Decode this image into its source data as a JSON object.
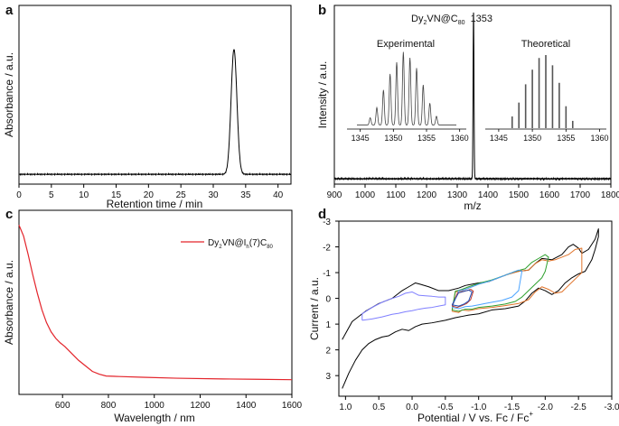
{
  "chart_data": [
    {
      "panel": "a",
      "type": "line",
      "xlabel": "Retention time / min",
      "ylabel": "Absorbance / a.u.",
      "xlim": [
        0,
        42
      ],
      "ylim": [
        0,
        1
      ],
      "xticks": [
        0,
        5,
        10,
        15,
        20,
        25,
        30,
        35,
        40
      ],
      "baseline": 0.055,
      "peaks": [
        {
          "x": 33.2,
          "height": 0.7,
          "width": 0.45
        }
      ],
      "noise": 0.004
    },
    {
      "panel": "b",
      "type": "line",
      "xlabel": "m/z",
      "ylabel": "Intensity / a.u.",
      "xlim": [
        900,
        1800
      ],
      "ylim": [
        0,
        1
      ],
      "xticks": [
        900,
        1000,
        1100,
        1200,
        1300,
        1400,
        1500,
        1600,
        1700,
        1800
      ],
      "baseline": 0.03,
      "peaks": [
        {
          "x": 1353,
          "height": 0.93,
          "width": 1.5
        }
      ],
      "peak_label": {
        "species_main": "Dy",
        "species_sub": "2",
        "species_mid": "VN@C",
        "species_sub2": "80",
        "value": "1353"
      },
      "insets": [
        {
          "title": "Experimental",
          "xlim": [
            1343,
            1361
          ],
          "xticks": [
            1345,
            1350,
            1355,
            1360
          ],
          "style": "broad",
          "masses": [
            1346.5,
            1347.5,
            1348.5,
            1349.5,
            1350.5,
            1351.5,
            1352.5,
            1353.5,
            1354.5,
            1355.5,
            1356.5
          ],
          "intensities": [
            0.1,
            0.24,
            0.48,
            0.7,
            0.86,
            1.0,
            0.92,
            0.78,
            0.55,
            0.3,
            0.12
          ]
        },
        {
          "title": "Theoretical",
          "xlim": [
            1343,
            1361
          ],
          "xticks": [
            1345,
            1350,
            1355,
            1360
          ],
          "style": "sticks",
          "masses": [
            1347,
            1348,
            1349,
            1350,
            1351,
            1352,
            1353,
            1354,
            1355,
            1356
          ],
          "intensities": [
            0.16,
            0.35,
            0.6,
            0.8,
            0.96,
            1.0,
            0.86,
            0.62,
            0.3,
            0.1
          ]
        }
      ]
    },
    {
      "panel": "c",
      "type": "line",
      "xlabel": "Wavelength / nm",
      "ylabel": "Absorbance / a.u.",
      "xlim": [
        410,
        1600
      ],
      "ylim": [
        0,
        1
      ],
      "xticks": [
        600,
        800,
        1000,
        1200,
        1400,
        1600
      ],
      "series": [
        {
          "name_main": "Dy",
          "name_sub": "2",
          "name_mid": "VN@I",
          "name_sub2": "h",
          "name_tail": "(7)C",
          "name_sub3": "80",
          "color": "#e3242b",
          "x": [
            410,
            430,
            450,
            470,
            490,
            510,
            530,
            550,
            570,
            590,
            610,
            630,
            650,
            670,
            700,
            730,
            760,
            790,
            850,
            950,
            1100,
            1300,
            1450,
            1600
          ],
          "y": [
            0.92,
            0.86,
            0.76,
            0.65,
            0.55,
            0.46,
            0.39,
            0.34,
            0.305,
            0.28,
            0.26,
            0.235,
            0.21,
            0.185,
            0.155,
            0.125,
            0.11,
            0.1,
            0.097,
            0.093,
            0.088,
            0.084,
            0.082,
            0.08
          ]
        }
      ]
    },
    {
      "panel": "d",
      "type": "line",
      "xlabel_main": "Potential / V vs. Fc / Fc",
      "xlabel_sup": "+",
      "ylabel": "Current / a.u.",
      "xlim": [
        1.1,
        -3.0
      ],
      "ylim": [
        3.8,
        -3.0
      ],
      "xticks": [
        1.0,
        0.5,
        0.0,
        -0.5,
        -1.0,
        -1.5,
        -2.0,
        -2.5,
        -3.0
      ],
      "xtick_labels": [
        "1.0",
        "0.5",
        "0.0",
        "-0.5",
        "-1.0",
        "-1.5",
        "-2.0",
        "-2.5",
        "-3.0"
      ],
      "yticks": [
        3,
        2,
        1,
        0,
        -1,
        -2,
        -3
      ],
      "series": [
        {
          "color": "#000000",
          "x": [
            1.05,
            0.95,
            0.85,
            0.75,
            0.65,
            0.55,
            0.45,
            0.35,
            0.25,
            0.15,
            0.05,
            -0.05,
            -0.15,
            -0.3,
            -0.5,
            -0.65,
            -0.75,
            -0.85,
            -1.0,
            -1.2,
            -1.4,
            -1.6,
            -1.7,
            -1.8,
            -1.9,
            -2.0,
            -2.1,
            -2.2,
            -2.3,
            -2.4,
            -2.5,
            -2.6,
            -2.7,
            -2.75,
            -2.8,
            -2.8,
            -2.75,
            -2.65,
            -2.55,
            -2.5,
            -2.42,
            -2.35,
            -2.25,
            -2.1,
            -1.95,
            -1.85,
            -1.75,
            -1.6,
            -1.45,
            -1.3,
            -1.15,
            -1.0,
            -0.9,
            -0.8,
            -0.7,
            -0.55,
            -0.4,
            -0.25,
            -0.12,
            -0.05,
            0.05,
            0.15,
            0.2,
            0.3,
            0.5,
            0.7,
            0.9,
            1.05
          ],
          "y": [
            3.5,
            2.9,
            2.4,
            2.0,
            1.75,
            1.6,
            1.5,
            1.45,
            1.3,
            1.2,
            1.25,
            1.1,
            1.0,
            0.95,
            0.85,
            0.75,
            0.7,
            0.65,
            0.6,
            0.45,
            0.4,
            0.3,
            0.1,
            -0.2,
            -0.4,
            -0.3,
            -0.15,
            -0.3,
            -0.6,
            -0.8,
            -0.95,
            -1.05,
            -1.5,
            -1.9,
            -2.4,
            -2.7,
            -2.3,
            -1.9,
            -1.75,
            -1.95,
            -2.1,
            -2.0,
            -1.7,
            -1.5,
            -1.55,
            -1.35,
            -1.1,
            -1.05,
            -0.95,
            -0.8,
            -0.65,
            -0.6,
            -0.55,
            -0.5,
            -0.4,
            -0.3,
            -0.3,
            -0.45,
            -0.55,
            -0.6,
            -0.45,
            -0.3,
            -0.2,
            0.0,
            0.2,
            0.5,
            0.9,
            1.6
          ]
        },
        {
          "color": "#7f7fff",
          "x": [
            0.75,
            0.6,
            0.45,
            0.3,
            0.2,
            0.1,
            0.0,
            -0.1,
            -0.2,
            -0.3,
            -0.4,
            -0.5,
            -0.5,
            -0.4,
            -0.3,
            -0.2,
            -0.1,
            0.0,
            0.1,
            0.2,
            0.3,
            0.45,
            0.6,
            0.75,
            0.75
          ],
          "y": [
            0.85,
            0.8,
            0.72,
            0.62,
            0.58,
            0.52,
            0.48,
            0.42,
            0.38,
            0.35,
            0.3,
            0.25,
            -0.05,
            -0.05,
            -0.08,
            -0.1,
            -0.12,
            -0.25,
            -0.2,
            -0.08,
            0.0,
            0.15,
            0.35,
            0.6,
            0.85
          ]
        },
        {
          "color": "#e0732a",
          "x": [
            -0.6,
            -0.7,
            -0.75,
            -0.85,
            -1.0,
            -1.2,
            -1.4,
            -1.6,
            -1.75,
            -1.85,
            -1.95,
            -2.05,
            -2.15,
            -2.25,
            -2.35,
            -2.45,
            -2.55,
            -2.55,
            -2.45,
            -2.35,
            -2.25,
            -2.15,
            -2.05,
            -1.95,
            -1.85,
            -1.75,
            -1.6,
            -1.4,
            -1.2,
            -1.0,
            -0.85,
            -0.75,
            -0.65,
            -0.6
          ],
          "y": [
            0.5,
            0.55,
            0.45,
            0.48,
            0.4,
            0.35,
            0.28,
            0.2,
            0.05,
            -0.25,
            -0.45,
            -0.35,
            -0.2,
            -0.25,
            -0.5,
            -0.75,
            -1.0,
            -1.95,
            -1.9,
            -1.7,
            -1.6,
            -1.5,
            -1.45,
            -1.5,
            -1.35,
            -1.1,
            -1.05,
            -0.9,
            -0.7,
            -0.55,
            -0.4,
            -0.3,
            -0.25,
            0.5
          ]
        },
        {
          "color": "#2ea02e",
          "x": [
            -0.6,
            -0.7,
            -0.8,
            -0.9,
            -1.0,
            -1.2,
            -1.4,
            -1.55,
            -1.65,
            -1.75,
            -1.85,
            -1.95,
            -2.0,
            -2.05,
            -2.0,
            -1.9,
            -1.8,
            -1.7,
            -1.55,
            -1.4,
            -1.2,
            -1.0,
            -0.85,
            -0.75,
            -0.65,
            -0.6
          ],
          "y": [
            0.45,
            0.5,
            0.42,
            0.42,
            0.35,
            0.3,
            0.22,
            0.12,
            -0.05,
            -0.3,
            -0.55,
            -0.8,
            -1.05,
            -1.6,
            -1.7,
            -1.55,
            -1.4,
            -1.15,
            -1.05,
            -0.9,
            -0.72,
            -0.58,
            -0.45,
            -0.35,
            -0.28,
            0.45
          ]
        },
        {
          "color": "#4aa3ff",
          "x": [
            -0.6,
            -0.7,
            -0.8,
            -0.9,
            -1.0,
            -1.1,
            -1.2,
            -1.35,
            -1.5,
            -1.6,
            -1.65,
            -1.6,
            -1.5,
            -1.4,
            -1.3,
            -1.2,
            -1.1,
            -1.0,
            -0.9,
            -0.8,
            -0.7,
            -0.6
          ],
          "y": [
            0.35,
            0.4,
            0.32,
            0.3,
            0.25,
            0.2,
            0.15,
            0.08,
            -0.05,
            -0.3,
            -1.05,
            -1.1,
            -1.0,
            -0.9,
            -0.8,
            -0.7,
            -0.62,
            -0.55,
            -0.45,
            -0.35,
            -0.3,
            0.35
          ]
        },
        {
          "color": "#c0392b",
          "x": [
            -0.6,
            -0.68,
            -0.75,
            -0.82,
            -0.88,
            -0.92,
            -0.88,
            -0.82,
            -0.75,
            -0.68,
            -0.6
          ],
          "y": [
            0.3,
            0.35,
            0.28,
            0.2,
            0.05,
            -0.28,
            -0.35,
            -0.3,
            -0.25,
            -0.2,
            0.3
          ]
        },
        {
          "color": "#1f4fb5",
          "x": [
            -0.6,
            -0.7,
            -0.78,
            -0.85,
            -0.9,
            -0.85,
            -0.78,
            -0.7,
            -0.6
          ],
          "y": [
            0.25,
            0.3,
            0.22,
            0.1,
            -0.25,
            -0.32,
            -0.28,
            -0.22,
            0.25
          ]
        }
      ]
    }
  ]
}
